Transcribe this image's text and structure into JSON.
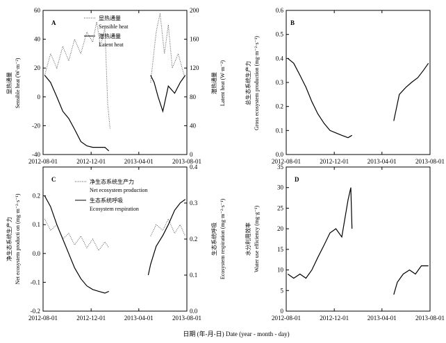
{
  "xlabel": "日期 (年-月-日) Date (year - month - day)",
  "x_ticks": [
    "2012-08-01",
    "2012-12-01",
    "2013-04-01",
    "2013-08-01"
  ],
  "chart_data": [
    {
      "panel": "A",
      "type": "line",
      "xlim": [
        "2012-08-01",
        "2013-08-01"
      ],
      "ylabel_left": [
        "显热通量",
        "Sensible heat (W·m⁻²)"
      ],
      "ylabel_right": [
        "潜热通量",
        "Latent heat (W·m⁻²)"
      ],
      "ylim_left": [
        -40,
        60
      ],
      "ylim_right": [
        0,
        200
      ],
      "yticks_left": [
        "-40",
        "-20",
        "0",
        "20",
        "40",
        "60"
      ],
      "yticks_right": [
        "0",
        "40",
        "80",
        "120",
        "160",
        "200"
      ],
      "legend": [
        {
          "style": "dotted",
          "label": [
            "显热通量",
            "Sensible heat"
          ]
        },
        {
          "style": "solid",
          "label": [
            "潜热通量",
            "Latent heat"
          ]
        }
      ],
      "series": [
        {
          "name": "Sensible heat",
          "axis": "left",
          "style": "dotted",
          "segments": [
            [
              [
                "2012-08-05",
                15
              ],
              [
                "2012-08-20",
                30
              ],
              [
                "2012-09-05",
                20
              ],
              [
                "2012-09-20",
                35
              ],
              [
                "2012-10-05",
                25
              ],
              [
                "2012-10-20",
                40
              ],
              [
                "2012-11-05",
                30
              ],
              [
                "2012-11-20",
                45
              ],
              [
                "2012-12-05",
                38
              ],
              [
                "2012-12-15",
                52
              ],
              [
                "2012-12-25",
                35
              ],
              [
                "2013-01-05",
                48
              ],
              [
                "2013-01-12",
                -5
              ],
              [
                "2013-01-18",
                -22
              ]
            ],
            [
              [
                "2013-05-01",
                10
              ],
              [
                "2013-05-15",
                45
              ],
              [
                "2013-05-25",
                58
              ],
              [
                "2013-06-05",
                30
              ],
              [
                "2013-06-15",
                50
              ],
              [
                "2013-06-25",
                20
              ],
              [
                "2013-07-10",
                30
              ],
              [
                "2013-07-25",
                15
              ]
            ]
          ]
        },
        {
          "name": "Latent heat",
          "axis": "right",
          "style": "solid",
          "segments": [
            [
              [
                "2012-08-05",
                110
              ],
              [
                "2012-08-20",
                100
              ],
              [
                "2012-09-05",
                80
              ],
              [
                "2012-09-20",
                60
              ],
              [
                "2012-10-05",
                50
              ],
              [
                "2012-10-20",
                35
              ],
              [
                "2012-11-05",
                18
              ],
              [
                "2012-11-20",
                12
              ],
              [
                "2012-12-05",
                10
              ],
              [
                "2012-12-20",
                10
              ],
              [
                "2013-01-05",
                10
              ],
              [
                "2013-01-15",
                5
              ]
            ],
            [
              [
                "2013-05-01",
                110
              ],
              [
                "2013-05-10",
                100
              ],
              [
                "2013-05-20",
                80
              ],
              [
                "2013-06-01",
                60
              ],
              [
                "2013-06-15",
                95
              ],
              [
                "2013-07-01",
                85
              ],
              [
                "2013-07-15",
                100
              ],
              [
                "2013-07-28",
                110
              ]
            ]
          ]
        }
      ]
    },
    {
      "panel": "B",
      "type": "line",
      "xlim": [
        "2012-08-01",
        "2013-08-01"
      ],
      "ylabel_left": [
        "总生态系统生产力",
        "Gross ecosystem production (mg·m⁻²·s⁻¹)"
      ],
      "ylim_left": [
        0,
        0.6
      ],
      "yticks_left": [
        "0.0",
        "0.1",
        "0.2",
        "0.3",
        "0.4",
        "0.5",
        "0.6"
      ],
      "series": [
        {
          "name": "Gross ecosystem production",
          "axis": "left",
          "style": "solid",
          "segments": [
            [
              [
                "2012-08-05",
                0.4
              ],
              [
                "2012-08-20",
                0.38
              ],
              [
                "2012-09-05",
                0.33
              ],
              [
                "2012-09-20",
                0.28
              ],
              [
                "2012-10-05",
                0.22
              ],
              [
                "2012-10-20",
                0.17
              ],
              [
                "2012-11-05",
                0.13
              ],
              [
                "2012-11-20",
                0.1
              ],
              [
                "2012-12-05",
                0.09
              ],
              [
                "2012-12-20",
                0.08
              ],
              [
                "2013-01-05",
                0.07
              ],
              [
                "2013-01-15",
                0.08
              ]
            ],
            [
              [
                "2013-05-01",
                0.14
              ],
              [
                "2013-05-15",
                0.25
              ],
              [
                "2013-06-01",
                0.28
              ],
              [
                "2013-06-15",
                0.3
              ],
              [
                "2013-07-01",
                0.32
              ],
              [
                "2013-07-15",
                0.35
              ],
              [
                "2013-07-28",
                0.38
              ]
            ]
          ]
        }
      ]
    },
    {
      "panel": "C",
      "type": "line",
      "xlim": [
        "2012-08-01",
        "2013-08-01"
      ],
      "ylabel_left": [
        "净生态系统生产力",
        "Net ecosystem producti on (mg·m⁻²·s⁻¹)"
      ],
      "ylabel_right": [
        "生态系统呼吸",
        "Ecosystem respiration (mg·m⁻²·s⁻¹)"
      ],
      "ylim_left": [
        -0.2,
        0.3
      ],
      "ylim_right": [
        0,
        0.4
      ],
      "yticks_left": [
        "-0.2",
        "-0.1",
        "0.0",
        "0.1",
        "0.2"
      ],
      "yticks_right": [
        "0.0",
        "0.1",
        "0.2",
        "0.3",
        "0.4"
      ],
      "legend": [
        {
          "style": "dotted",
          "label": [
            "净生态系统生产力",
            "Net ecosystem production"
          ]
        },
        {
          "style": "solid",
          "label": [
            "生态系统呼吸",
            "Ecosystem respiration"
          ]
        }
      ],
      "series": [
        {
          "name": "Net ecosystem production",
          "axis": "left",
          "style": "dotted",
          "segments": [
            [
              [
                "2012-08-05",
                0.12
              ],
              [
                "2012-08-20",
                0.08
              ],
              [
                "2012-09-05",
                0.1
              ],
              [
                "2012-09-20",
                0.05
              ],
              [
                "2012-10-05",
                0.07
              ],
              [
                "2012-10-20",
                0.03
              ],
              [
                "2012-11-05",
                0.06
              ],
              [
                "2012-11-20",
                0.02
              ],
              [
                "2012-12-05",
                0.05
              ],
              [
                "2012-12-20",
                0.01
              ],
              [
                "2013-01-05",
                0.04
              ],
              [
                "2013-01-15",
                0.02
              ]
            ],
            [
              [
                "2013-05-01",
                0.06
              ],
              [
                "2013-05-15",
                0.1
              ],
              [
                "2013-06-01",
                0.08
              ],
              [
                "2013-06-15",
                0.12
              ],
              [
                "2013-07-01",
                0.07
              ],
              [
                "2013-07-15",
                0.1
              ],
              [
                "2013-07-28",
                0.06
              ]
            ]
          ]
        },
        {
          "name": "Ecosystem respiration",
          "axis": "right",
          "style": "solid",
          "segments": [
            [
              [
                "2012-08-05",
                0.32
              ],
              [
                "2012-08-20",
                0.29
              ],
              [
                "2012-09-05",
                0.24
              ],
              [
                "2012-09-20",
                0.2
              ],
              [
                "2012-10-05",
                0.16
              ],
              [
                "2012-10-20",
                0.12
              ],
              [
                "2012-11-05",
                0.09
              ],
              [
                "2012-11-20",
                0.07
              ],
              [
                "2012-12-05",
                0.06
              ],
              [
                "2012-12-20",
                0.055
              ],
              [
                "2013-01-05",
                0.05
              ],
              [
                "2013-01-15",
                0.055
              ]
            ],
            [
              [
                "2013-04-25",
                0.1
              ],
              [
                "2013-05-01",
                0.13
              ],
              [
                "2013-05-15",
                0.18
              ],
              [
                "2013-06-01",
                0.21
              ],
              [
                "2013-06-15",
                0.24
              ],
              [
                "2013-07-01",
                0.28
              ],
              [
                "2013-07-15",
                0.3
              ],
              [
                "2013-07-28",
                0.31
              ]
            ]
          ]
        }
      ]
    },
    {
      "panel": "D",
      "type": "line",
      "xlim": [
        "2012-08-01",
        "2013-08-01"
      ],
      "ylabel_left": [
        "水分利用效率",
        "Water use efficiency (mg·g⁻¹)"
      ],
      "ylim_left": [
        0,
        35
      ],
      "yticks_left": [
        "0",
        "5",
        "10",
        "15",
        "20",
        "25",
        "30",
        "35"
      ],
      "series": [
        {
          "name": "Water use efficiency",
          "axis": "left",
          "style": "solid",
          "segments": [
            [
              [
                "2012-08-05",
                9
              ],
              [
                "2012-08-20",
                8
              ],
              [
                "2012-09-05",
                9
              ],
              [
                "2012-09-20",
                8
              ],
              [
                "2012-10-05",
                10
              ],
              [
                "2012-10-20",
                13
              ],
              [
                "2012-11-05",
                16
              ],
              [
                "2012-11-20",
                19
              ],
              [
                "2012-12-05",
                20
              ],
              [
                "2012-12-20",
                18
              ],
              [
                "2013-01-05",
                27
              ],
              [
                "2013-01-12",
                30
              ],
              [
                "2013-01-15",
                20
              ]
            ],
            [
              [
                "2013-05-01",
                4
              ],
              [
                "2013-05-10",
                7
              ],
              [
                "2013-05-25",
                9
              ],
              [
                "2013-06-10",
                10
              ],
              [
                "2013-06-25",
                9
              ],
              [
                "2013-07-10",
                11
              ],
              [
                "2013-07-28",
                11
              ]
            ]
          ]
        }
      ]
    }
  ]
}
